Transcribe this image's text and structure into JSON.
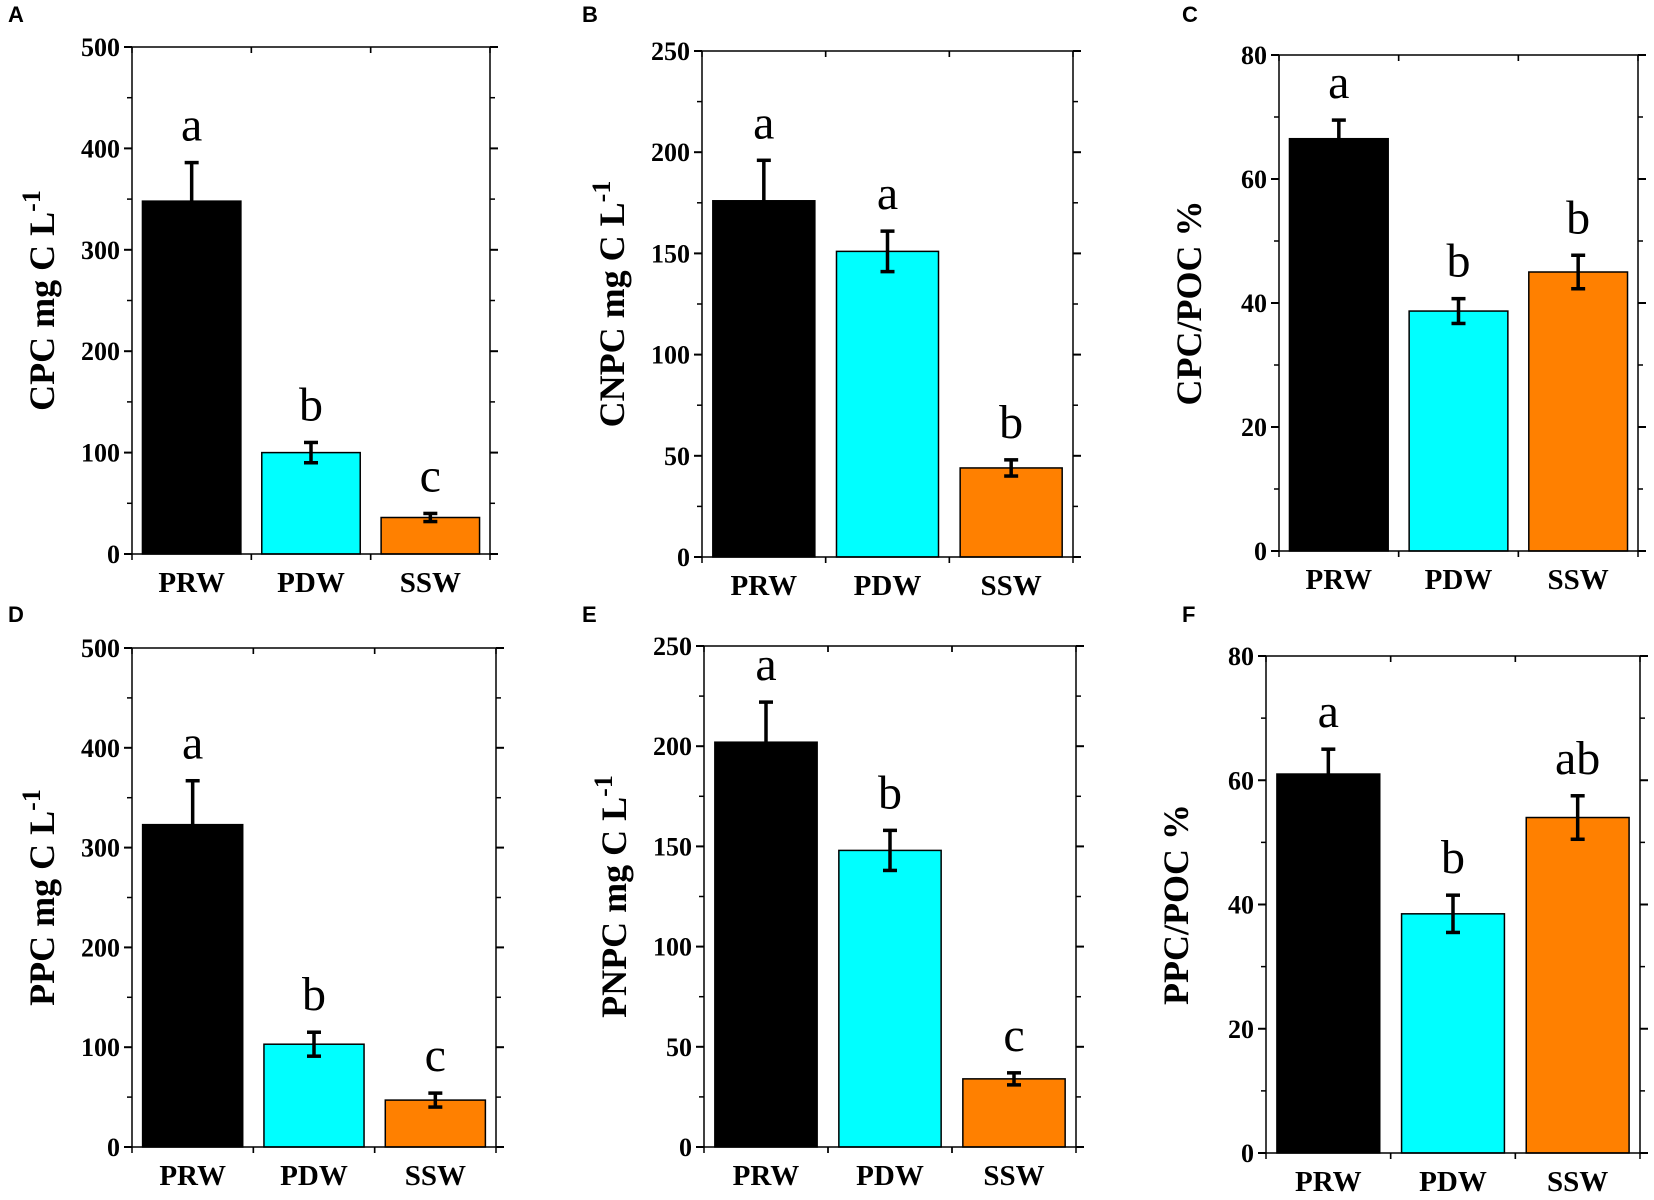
{
  "colors": {
    "PRW": "#000000",
    "PDW": "#00ffff",
    "SSW": "#ff8000"
  },
  "chart_data": [
    {
      "panel": "A",
      "type": "bar",
      "ylabel": "CPC mg C L",
      "ylabel_sup": "-1",
      "ylim": [
        0,
        500
      ],
      "yticks": [
        0,
        100,
        200,
        300,
        400,
        500
      ],
      "categories": [
        "PRW",
        "PDW",
        "SSW"
      ],
      "values": [
        348,
        100,
        36
      ],
      "errors": [
        38,
        10,
        4
      ],
      "significance": [
        "a",
        "b",
        "c"
      ]
    },
    {
      "panel": "B",
      "type": "bar",
      "ylabel": "CNPC mg C L",
      "ylabel_sup": "-1",
      "ylim": [
        0,
        250
      ],
      "yticks": [
        0,
        50,
        100,
        150,
        200,
        250
      ],
      "categories": [
        "PRW",
        "PDW",
        "SSW"
      ],
      "values": [
        176,
        151,
        44
      ],
      "errors": [
        20,
        10,
        4
      ],
      "significance": [
        "a",
        "a",
        "b"
      ]
    },
    {
      "panel": "C",
      "type": "bar",
      "ylabel": "CPC/POC  %",
      "ylabel_sup": "",
      "ylim": [
        0,
        80
      ],
      "yticks": [
        0,
        20,
        40,
        60,
        80
      ],
      "categories": [
        "PRW",
        "PDW",
        "SSW"
      ],
      "values": [
        66.5,
        38.7,
        45
      ],
      "errors": [
        3,
        2,
        2.7
      ],
      "significance": [
        "a",
        "b",
        "b"
      ]
    },
    {
      "panel": "D",
      "type": "bar",
      "ylabel": "PPC mg C L",
      "ylabel_sup": "-1",
      "ylim": [
        0,
        500
      ],
      "yticks": [
        0,
        100,
        200,
        300,
        400,
        500
      ],
      "categories": [
        "PRW",
        "PDW",
        "SSW"
      ],
      "values": [
        323,
        103,
        47
      ],
      "errors": [
        44,
        12,
        7
      ],
      "significance": [
        "a",
        "b",
        "c"
      ]
    },
    {
      "panel": "E",
      "type": "bar",
      "ylabel": "PNPC mg C L",
      "ylabel_sup": "-1",
      "ylim": [
        0,
        250
      ],
      "yticks": [
        0,
        50,
        100,
        150,
        200,
        250
      ],
      "categories": [
        "PRW",
        "PDW",
        "SSW"
      ],
      "values": [
        202,
        148,
        34
      ],
      "errors": [
        20,
        10,
        3
      ],
      "significance": [
        "a",
        "b",
        "c"
      ]
    },
    {
      "panel": "F",
      "type": "bar",
      "ylabel": "PPC/POC  %",
      "ylabel_sup": "",
      "ylim": [
        0,
        80
      ],
      "yticks": [
        0,
        20,
        40,
        60,
        80
      ],
      "categories": [
        "PRW",
        "PDW",
        "SSW"
      ],
      "values": [
        61,
        38.5,
        54
      ],
      "errors": [
        4,
        3,
        3.5
      ],
      "significance": [
        "a",
        "b",
        "ab"
      ]
    }
  ]
}
